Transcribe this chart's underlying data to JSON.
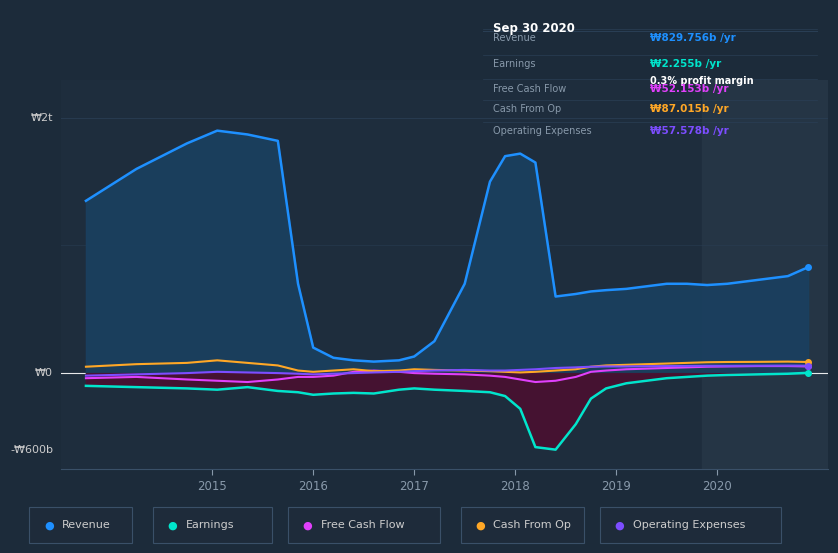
{
  "bg_color": "#1c2b3a",
  "plot_bg_color": "#1e2d3d",
  "grid_color": "#2a3f55",
  "highlight_band_color": "#253545",
  "ylabel_w0": "₩0",
  "ylabel_w2t": "₩2t",
  "ylabel_wm600b": "-₩600b",
  "xlim": [
    2013.5,
    2021.1
  ],
  "ylim": [
    -750,
    2300
  ],
  "revenue_color": "#1e90ff",
  "earnings_color": "#00e5cc",
  "fcf_color": "#e040fb",
  "cashfromop_color": "#ffa726",
  "opex_color": "#7c4dff",
  "revenue_fill": "#1a4060",
  "earnings_fill_neg": "#4a1030",
  "revenue": {
    "x": [
      2013.75,
      2014.25,
      2014.75,
      2015.05,
      2015.35,
      2015.65,
      2015.85,
      2016.0,
      2016.2,
      2016.4,
      2016.6,
      2016.85,
      2017.0,
      2017.2,
      2017.5,
      2017.75,
      2017.9,
      2018.05,
      2018.2,
      2018.4,
      2018.6,
      2018.75,
      2018.9,
      2019.1,
      2019.3,
      2019.5,
      2019.7,
      2019.9,
      2020.1,
      2020.4,
      2020.7,
      2020.9
    ],
    "y": [
      1350,
      1600,
      1800,
      1900,
      1870,
      1820,
      700,
      200,
      120,
      100,
      90,
      100,
      130,
      250,
      700,
      1500,
      1700,
      1720,
      1650,
      600,
      620,
      640,
      650,
      660,
      680,
      700,
      700,
      690,
      700,
      730,
      760,
      830
    ]
  },
  "earnings": {
    "x": [
      2013.75,
      2014.25,
      2014.75,
      2015.05,
      2015.35,
      2015.65,
      2015.85,
      2016.0,
      2016.2,
      2016.4,
      2016.6,
      2016.85,
      2017.0,
      2017.2,
      2017.5,
      2017.75,
      2017.9,
      2018.05,
      2018.2,
      2018.4,
      2018.6,
      2018.75,
      2018.9,
      2019.1,
      2019.3,
      2019.5,
      2019.7,
      2019.9,
      2020.1,
      2020.4,
      2020.7,
      2020.9
    ],
    "y": [
      -100,
      -110,
      -120,
      -130,
      -110,
      -140,
      -150,
      -170,
      -160,
      -155,
      -160,
      -130,
      -120,
      -130,
      -140,
      -150,
      -180,
      -280,
      -580,
      -600,
      -400,
      -200,
      -120,
      -80,
      -60,
      -40,
      -30,
      -20,
      -15,
      -10,
      -5,
      2
    ]
  },
  "fcf": {
    "x": [
      2013.75,
      2014.25,
      2014.75,
      2015.05,
      2015.35,
      2015.65,
      2015.85,
      2016.0,
      2016.2,
      2016.4,
      2016.6,
      2016.85,
      2017.0,
      2017.2,
      2017.5,
      2017.75,
      2017.9,
      2018.05,
      2018.2,
      2018.4,
      2018.6,
      2018.75,
      2018.9,
      2019.1,
      2019.3,
      2019.5,
      2019.7,
      2019.9,
      2020.1,
      2020.4,
      2020.7,
      2020.9
    ],
    "y": [
      -40,
      -30,
      -50,
      -60,
      -70,
      -50,
      -30,
      -30,
      -20,
      10,
      20,
      10,
      0,
      -5,
      -10,
      -20,
      -30,
      -50,
      -70,
      -60,
      -30,
      10,
      20,
      30,
      35,
      40,
      45,
      50,
      52,
      55,
      55,
      52
    ]
  },
  "cashfromop": {
    "x": [
      2013.75,
      2014.25,
      2014.75,
      2015.05,
      2015.35,
      2015.65,
      2015.85,
      2016.0,
      2016.2,
      2016.4,
      2016.6,
      2016.85,
      2017.0,
      2017.2,
      2017.5,
      2017.75,
      2017.9,
      2018.05,
      2018.2,
      2018.4,
      2018.6,
      2018.75,
      2018.9,
      2019.1,
      2019.3,
      2019.5,
      2019.7,
      2019.9,
      2020.1,
      2020.4,
      2020.7,
      2020.9
    ],
    "y": [
      50,
      70,
      80,
      100,
      80,
      60,
      20,
      10,
      20,
      30,
      15,
      20,
      30,
      25,
      20,
      15,
      10,
      5,
      10,
      20,
      30,
      50,
      60,
      65,
      70,
      75,
      80,
      85,
      87,
      88,
      90,
      87
    ]
  },
  "opex": {
    "x": [
      2013.75,
      2014.25,
      2014.75,
      2015.05,
      2015.35,
      2015.65,
      2015.85,
      2016.0,
      2016.2,
      2016.4,
      2016.6,
      2016.85,
      2017.0,
      2017.2,
      2017.5,
      2017.75,
      2017.9,
      2018.05,
      2018.2,
      2018.4,
      2018.6,
      2018.75,
      2018.9,
      2019.1,
      2019.3,
      2019.5,
      2019.7,
      2019.9,
      2020.1,
      2020.4,
      2020.7,
      2020.9
    ],
    "y": [
      -20,
      -10,
      0,
      10,
      5,
      0,
      -5,
      -10,
      -5,
      0,
      5,
      10,
      15,
      20,
      25,
      20,
      20,
      25,
      30,
      40,
      45,
      50,
      52,
      52,
      54,
      55,
      56,
      57,
      57,
      58,
      59,
      58
    ]
  },
  "tooltip": {
    "date": "Sep 30 2020",
    "revenue_label": "Revenue",
    "revenue_value": "₩829.756b /yr",
    "earnings_label": "Earnings",
    "earnings_value": "₩2.255b /yr",
    "earnings_margin": "0.3% profit margin",
    "fcf_label": "Free Cash Flow",
    "fcf_value": "₩52.153b /yr",
    "cashfromop_label": "Cash From Op",
    "cashfromop_value": "₩87.015b /yr",
    "opex_label": "Operating Expenses",
    "opex_value": "₩57.578b /yr"
  },
  "legend": [
    {
      "label": "Revenue",
      "color": "#1e90ff"
    },
    {
      "label": "Earnings",
      "color": "#00e5cc"
    },
    {
      "label": "Free Cash Flow",
      "color": "#e040fb"
    },
    {
      "label": "Cash From Op",
      "color": "#ffa726"
    },
    {
      "label": "Operating Expenses",
      "color": "#7c4dff"
    }
  ],
  "highlight_x_start": 2019.85,
  "highlight_x_end": 2021.1,
  "zero_line_y": 0,
  "grid_y1": 2000,
  "grid_y2": 1000
}
